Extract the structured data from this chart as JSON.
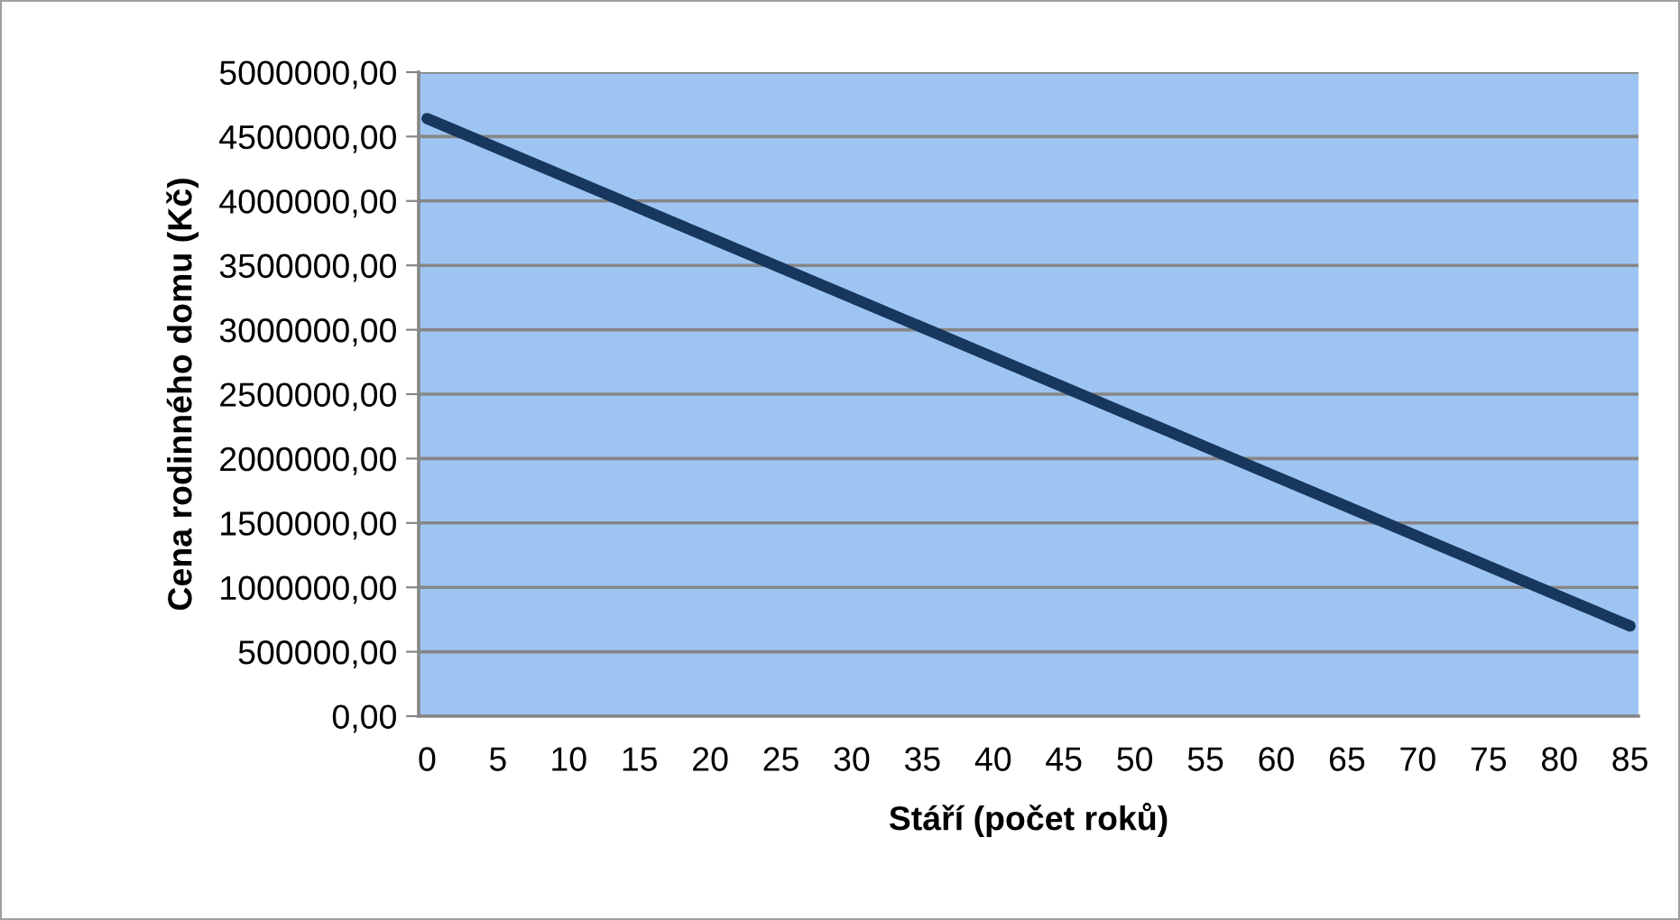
{
  "chart_data": {
    "type": "line",
    "xlabel": "Stáří (počet roků)",
    "ylabel": "Cena rodinného domu (Kč)",
    "series": [
      {
        "color": "#17375e",
        "x": [
          0,
          85
        ],
        "values": [
          4640000,
          700000
        ]
      }
    ],
    "xlim": [
      -0.6,
      85.6
    ],
    "xticks": [
      0,
      5,
      10,
      15,
      20,
      25,
      30,
      35,
      40,
      45,
      50,
      55,
      60,
      65,
      70,
      75,
      80,
      85
    ],
    "ylim": [
      0,
      5000000
    ],
    "yticks": [
      {
        "value": 0,
        "label": "0,00"
      },
      {
        "value": 500000,
        "label": "500000,00"
      },
      {
        "value": 1000000,
        "label": "1000000,00"
      },
      {
        "value": 1500000,
        "label": "1500000,00"
      },
      {
        "value": 2000000,
        "label": "2000000,00"
      },
      {
        "value": 2500000,
        "label": "2500000,00"
      },
      {
        "value": 3000000,
        "label": "3000000,00"
      },
      {
        "value": 3500000,
        "label": "3500000,00"
      },
      {
        "value": 4000000,
        "label": "4000000,00"
      },
      {
        "value": 4500000,
        "label": "4500000,00"
      },
      {
        "value": 5000000,
        "label": "5000000,00"
      }
    ],
    "grid": "y",
    "marker": "none",
    "line_style": "solid"
  }
}
